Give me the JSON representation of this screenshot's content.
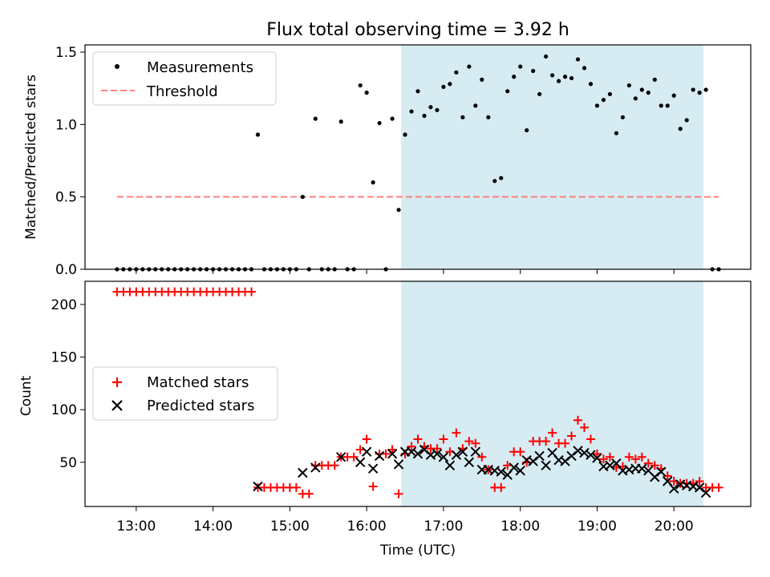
{
  "chart_data": [
    {
      "type": "scatter",
      "title": "Flux total observing time = 3.92 h",
      "ylabel": "Matched/Predicted stars",
      "ylim": [
        0,
        1.55
      ],
      "xlim": [
        "12:20",
        "21:00"
      ],
      "yticks": [
        0.0,
        0.5,
        1.0,
        1.5
      ],
      "ytick_labels": [
        "0.0",
        "0.5",
        "1.0",
        "1.5"
      ],
      "shaded_span": {
        "x": [
          "16:27",
          "20:23"
        ],
        "color": "#add8e6"
      },
      "threshold": {
        "value": 0.5,
        "x": [
          "12:45",
          "20:35"
        ],
        "color": "#ff8080"
      },
      "legend": {
        "placement": "upper-left",
        "entries": [
          "Measurements",
          "Threshold"
        ]
      },
      "series": [
        {
          "name": "Measurements",
          "marker": "dot",
          "color": "#000000",
          "points": [
            [
              "12:45",
              0
            ],
            [
              "12:50",
              0
            ],
            [
              "12:55",
              0
            ],
            [
              "13:00",
              0
            ],
            [
              "13:05",
              0
            ],
            [
              "13:10",
              0
            ],
            [
              "13:15",
              0
            ],
            [
              "13:20",
              0
            ],
            [
              "13:25",
              0
            ],
            [
              "13:30",
              0
            ],
            [
              "13:35",
              0
            ],
            [
              "13:40",
              0
            ],
            [
              "13:45",
              0
            ],
            [
              "13:50",
              0
            ],
            [
              "13:55",
              0
            ],
            [
              "14:00",
              0
            ],
            [
              "14:05",
              0
            ],
            [
              "14:10",
              0
            ],
            [
              "14:15",
              0
            ],
            [
              "14:20",
              0
            ],
            [
              "14:25",
              0
            ],
            [
              "14:30",
              0
            ],
            [
              "14:35",
              0.93
            ],
            [
              "14:40",
              0
            ],
            [
              "14:45",
              0
            ],
            [
              "14:50",
              0
            ],
            [
              "14:55",
              0
            ],
            [
              "15:00",
              0
            ],
            [
              "15:05",
              0
            ],
            [
              "15:10",
              0.5
            ],
            [
              "15:15",
              0
            ],
            [
              "15:20",
              1.04
            ],
            [
              "15:25",
              0
            ],
            [
              "15:30",
              0
            ],
            [
              "15:35",
              0
            ],
            [
              "15:40",
              1.02
            ],
            [
              "15:45",
              0
            ],
            [
              "15:50",
              0
            ],
            [
              "15:55",
              1.27
            ],
            [
              "16:00",
              1.22
            ],
            [
              "16:05",
              0.6
            ],
            [
              "16:10",
              1.01
            ],
            [
              "16:15",
              0
            ],
            [
              "16:20",
              1.04
            ],
            [
              "16:25",
              0.41
            ],
            [
              "16:30",
              0.93
            ],
            [
              "16:35",
              1.09
            ],
            [
              "16:40",
              1.23
            ],
            [
              "16:45",
              1.06
            ],
            [
              "16:50",
              1.12
            ],
            [
              "16:55",
              1.1
            ],
            [
              "17:00",
              1.26
            ],
            [
              "17:05",
              1.28
            ],
            [
              "17:10",
              1.36
            ],
            [
              "17:15",
              1.05
            ],
            [
              "17:20",
              1.4
            ],
            [
              "17:25",
              1.13
            ],
            [
              "17:30",
              1.31
            ],
            [
              "17:35",
              1.05
            ],
            [
              "17:40",
              0.61
            ],
            [
              "17:45",
              0.63
            ],
            [
              "17:50",
              1.23
            ],
            [
              "17:55",
              1.33
            ],
            [
              "18:00",
              1.4
            ],
            [
              "18:05",
              0.96
            ],
            [
              "18:10",
              1.37
            ],
            [
              "18:15",
              1.21
            ],
            [
              "18:20",
              1.47
            ],
            [
              "18:25",
              1.34
            ],
            [
              "18:30",
              1.3
            ],
            [
              "18:35",
              1.33
            ],
            [
              "18:40",
              1.32
            ],
            [
              "18:45",
              1.45
            ],
            [
              "18:50",
              1.39
            ],
            [
              "18:55",
              1.28
            ],
            [
              "19:00",
              1.13
            ],
            [
              "19:05",
              1.17
            ],
            [
              "19:10",
              1.21
            ],
            [
              "19:15",
              0.94
            ],
            [
              "19:20",
              1.05
            ],
            [
              "19:25",
              1.27
            ],
            [
              "19:30",
              1.18
            ],
            [
              "19:35",
              1.24
            ],
            [
              "19:40",
              1.22
            ],
            [
              "19:45",
              1.31
            ],
            [
              "19:50",
              1.13
            ],
            [
              "19:55",
              1.13
            ],
            [
              "20:00",
              1.2
            ],
            [
              "20:05",
              0.97
            ],
            [
              "20:10",
              1.03
            ],
            [
              "20:15",
              1.24
            ],
            [
              "20:20",
              1.22
            ],
            [
              "20:25",
              1.24
            ],
            [
              "20:30",
              0
            ],
            [
              "20:35",
              0
            ]
          ]
        }
      ]
    },
    {
      "type": "scatter",
      "xlabel": "Time (UTC)",
      "ylabel": "Count",
      "ylim": [
        8,
        222
      ],
      "xlim": [
        "12:20",
        "21:00"
      ],
      "yticks": [
        50,
        100,
        150,
        200
      ],
      "ytick_labels": [
        "50",
        "100",
        "150",
        "200"
      ],
      "xticks": [
        "13:00",
        "14:00",
        "15:00",
        "16:00",
        "17:00",
        "18:00",
        "19:00",
        "20:00"
      ],
      "xtick_labels": [
        "13:00",
        "14:00",
        "15:00",
        "16:00",
        "17:00",
        "18:00",
        "19:00",
        "20:00"
      ],
      "shaded_span": {
        "x": [
          "16:27",
          "20:23"
        ],
        "color": "#add8e6"
      },
      "legend": {
        "placement": "center-left",
        "entries": [
          "Matched stars",
          "Predicted stars"
        ]
      },
      "series": [
        {
          "name": "Matched stars",
          "marker": "plus",
          "color": "#ff0000",
          "points": [
            [
              "12:45",
              212
            ],
            [
              "12:50",
              212
            ],
            [
              "12:55",
              212
            ],
            [
              "13:00",
              212
            ],
            [
              "13:05",
              212
            ],
            [
              "13:10",
              212
            ],
            [
              "13:15",
              212
            ],
            [
              "13:20",
              212
            ],
            [
              "13:25",
              212
            ],
            [
              "13:30",
              212
            ],
            [
              "13:35",
              212
            ],
            [
              "13:40",
              212
            ],
            [
              "13:45",
              212
            ],
            [
              "13:50",
              212
            ],
            [
              "13:55",
              212
            ],
            [
              "14:00",
              212
            ],
            [
              "14:05",
              212
            ],
            [
              "14:10",
              212
            ],
            [
              "14:15",
              212
            ],
            [
              "14:20",
              212
            ],
            [
              "14:25",
              212
            ],
            [
              "14:30",
              212
            ],
            [
              "14:35",
              26
            ],
            [
              "14:40",
              26
            ],
            [
              "14:45",
              26
            ],
            [
              "14:50",
              26
            ],
            [
              "14:55",
              26
            ],
            [
              "15:00",
              26
            ],
            [
              "15:05",
              26
            ],
            [
              "15:10",
              20
            ],
            [
              "15:15",
              20
            ],
            [
              "15:20",
              47
            ],
            [
              "15:25",
              47
            ],
            [
              "15:30",
              47
            ],
            [
              "15:35",
              47
            ],
            [
              "15:40",
              55
            ],
            [
              "15:45",
              55
            ],
            [
              "15:50",
              55
            ],
            [
              "15:55",
              62
            ],
            [
              "16:00",
              72
            ],
            [
              "16:05",
              27
            ],
            [
              "16:10",
              58
            ],
            [
              "16:15",
              58
            ],
            [
              "16:20",
              62
            ],
            [
              "16:25",
              20
            ],
            [
              "16:30",
              58
            ],
            [
              "16:35",
              65
            ],
            [
              "16:40",
              72
            ],
            [
              "16:45",
              65
            ],
            [
              "16:50",
              63
            ],
            [
              "16:55",
              63
            ],
            [
              "17:00",
              72
            ],
            [
              "17:05",
              60
            ],
            [
              "17:10",
              78
            ],
            [
              "17:15",
              63
            ],
            [
              "17:20",
              70
            ],
            [
              "17:25",
              68
            ],
            [
              "17:30",
              55
            ],
            [
              "17:35",
              43
            ],
            [
              "17:40",
              26
            ],
            [
              "17:45",
              26
            ],
            [
              "17:50",
              47
            ],
            [
              "17:55",
              60
            ],
            [
              "18:00",
              60
            ],
            [
              "18:05",
              50
            ],
            [
              "18:10",
              70
            ],
            [
              "18:15",
              70
            ],
            [
              "18:20",
              70
            ],
            [
              "18:25",
              78
            ],
            [
              "18:30",
              68
            ],
            [
              "18:35",
              68
            ],
            [
              "18:40",
              75
            ],
            [
              "18:45",
              90
            ],
            [
              "18:50",
              83
            ],
            [
              "18:55",
              72
            ],
            [
              "19:00",
              58
            ],
            [
              "19:05",
              53
            ],
            [
              "19:10",
              55
            ],
            [
              "19:15",
              45
            ],
            [
              "19:20",
              46
            ],
            [
              "19:25",
              55
            ],
            [
              "19:30",
              53
            ],
            [
              "19:35",
              55
            ],
            [
              "19:40",
              49
            ],
            [
              "19:45",
              47
            ],
            [
              "19:50",
              44
            ],
            [
              "19:55",
              37
            ],
            [
              "20:00",
              32
            ],
            [
              "20:05",
              30
            ],
            [
              "20:10",
              30
            ],
            [
              "20:15",
              30
            ],
            [
              "20:20",
              32
            ],
            [
              "20:25",
              26
            ],
            [
              "20:30",
              26
            ],
            [
              "20:35",
              26
            ]
          ]
        },
        {
          "name": "Predicted stars",
          "marker": "x",
          "color": "#000000",
          "points": [
            [
              "14:35",
              27
            ],
            [
              "15:10",
              40
            ],
            [
              "15:20",
              45
            ],
            [
              "15:40",
              55
            ],
            [
              "15:55",
              50
            ],
            [
              "16:00",
              60
            ],
            [
              "16:05",
              44
            ],
            [
              "16:10",
              56
            ],
            [
              "16:20",
              58
            ],
            [
              "16:25",
              48
            ],
            [
              "16:30",
              60
            ],
            [
              "16:35",
              60
            ],
            [
              "16:40",
              58
            ],
            [
              "16:45",
              62
            ],
            [
              "16:50",
              57
            ],
            [
              "16:55",
              58
            ],
            [
              "17:00",
              55
            ],
            [
              "17:05",
              47
            ],
            [
              "17:10",
              57
            ],
            [
              "17:15",
              60
            ],
            [
              "17:20",
              50
            ],
            [
              "17:25",
              60
            ],
            [
              "17:30",
              43
            ],
            [
              "17:35",
              43
            ],
            [
              "17:40",
              42
            ],
            [
              "17:45",
              41
            ],
            [
              "17:50",
              38
            ],
            [
              "17:55",
              45
            ],
            [
              "18:00",
              42
            ],
            [
              "18:05",
              52
            ],
            [
              "18:10",
              51
            ],
            [
              "18:15",
              56
            ],
            [
              "18:20",
              47
            ],
            [
              "18:25",
              59
            ],
            [
              "18:30",
              52
            ],
            [
              "18:35",
              51
            ],
            [
              "18:40",
              56
            ],
            [
              "18:45",
              61
            ],
            [
              "18:50",
              59
            ],
            [
              "18:55",
              57
            ],
            [
              "19:00",
              54
            ],
            [
              "19:05",
              46
            ],
            [
              "19:10",
              47
            ],
            [
              "19:15",
              49
            ],
            [
              "19:20",
              42
            ],
            [
              "19:25",
              43
            ],
            [
              "19:30",
              44
            ],
            [
              "19:35",
              44
            ],
            [
              "19:40",
              42
            ],
            [
              "19:45",
              36
            ],
            [
              "19:50",
              41
            ],
            [
              "19:55",
              32
            ],
            [
              "20:00",
              25
            ],
            [
              "20:05",
              29
            ],
            [
              "20:10",
              28
            ],
            [
              "20:15",
              27
            ],
            [
              "20:20",
              26
            ],
            [
              "20:25",
              21
            ]
          ]
        }
      ]
    }
  ]
}
